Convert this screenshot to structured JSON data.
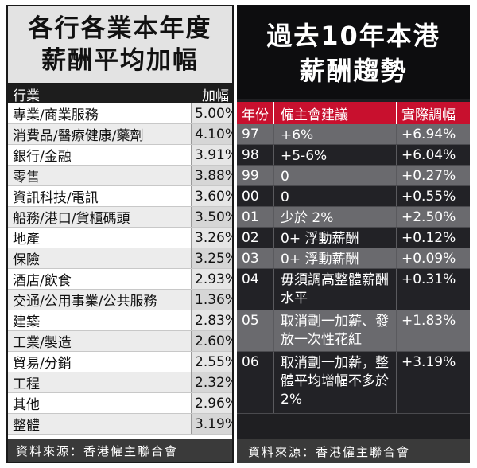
{
  "left": {
    "title_line1": "各行各業本年度",
    "title_line2": "薪酬平均加幅",
    "col_industry": "行業",
    "col_increase": "加幅",
    "rows": [
      {
        "industry": "專業/商業服務",
        "increase": "5.00%"
      },
      {
        "industry": "消費品/醫療健康/藥劑",
        "increase": "4.10%"
      },
      {
        "industry": "銀行/金融",
        "increase": "3.91%"
      },
      {
        "industry": "零售",
        "increase": "3.88%"
      },
      {
        "industry": "資訊科技/電訊",
        "increase": "3.60%"
      },
      {
        "industry": "船務/港口/貨櫃碼頭",
        "increase": "3.50%"
      },
      {
        "industry": "地產",
        "increase": "3.26%"
      },
      {
        "industry": "保險",
        "increase": "3.25%"
      },
      {
        "industry": "酒店/飲食",
        "increase": "2.93%"
      },
      {
        "industry": "交通/公用事業/公共服務",
        "increase": "1.36%"
      },
      {
        "industry": "建築",
        "increase": "2.83%"
      },
      {
        "industry": "工業/製造",
        "increase": "2.60%"
      },
      {
        "industry": "貿易/分銷",
        "increase": "2.55%"
      },
      {
        "industry": "工程",
        "increase": "2.32%"
      },
      {
        "industry": "其他",
        "increase": "2.96%"
      },
      {
        "industry": "整體",
        "increase": "3.19%"
      }
    ],
    "source": "資料來源：香港僱主聯合會"
  },
  "right": {
    "title_line1": "過去10年本港",
    "title_line2": "薪酬趨勢",
    "col_year": "年份",
    "col_recommend": "僱主會建議",
    "col_actual": "實際調幅",
    "rows": [
      {
        "year": "97",
        "recommend": "+6%",
        "actual": "+6.94%"
      },
      {
        "year": "98",
        "recommend": "+5-6%",
        "actual": "+6.04%"
      },
      {
        "year": "99",
        "recommend": "0",
        "actual": "+0.27%"
      },
      {
        "year": "00",
        "recommend": "0",
        "actual": "+0.55%"
      },
      {
        "year": "01",
        "recommend": "少於 2%",
        "actual": "+2.50%"
      },
      {
        "year": "02",
        "recommend": "0+ 浮動薪酬",
        "actual": "+0.12%"
      },
      {
        "year": "03",
        "recommend": "0+ 浮動薪酬",
        "actual": "+0.09%"
      },
      {
        "year": "04",
        "recommend": "毋須調高整體薪酬水平",
        "actual": "+0.31%"
      },
      {
        "year": "05",
        "recommend": "取消劃一加薪、發放一次性花紅",
        "actual": "+1.83%"
      },
      {
        "year": "06",
        "recommend": "取消劃一加薪，整體平均增幅不多於 2%",
        "actual": "+3.19%"
      }
    ],
    "source": "資料來源：香港僱主聯合會"
  }
}
